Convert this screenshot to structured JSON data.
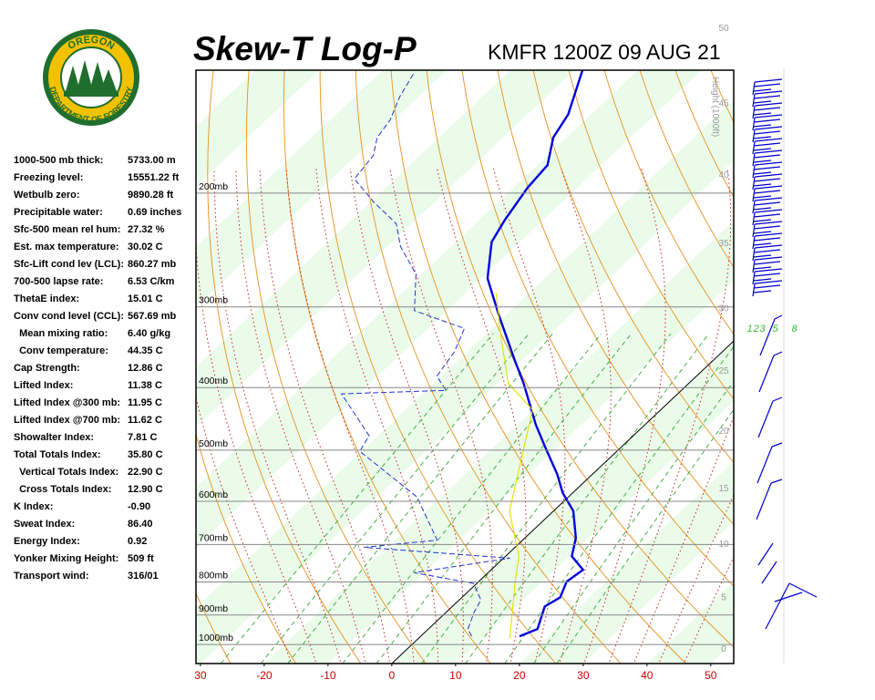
{
  "chart_data": {
    "type": "skewt",
    "title": "Skew-T Log-P",
    "subtitle": "KMFR 1200Z 09 AUG 21",
    "logo_top": "OREGON",
    "logo_bottom": "DEPARTMENT OF FORESTRY",
    "ylog": true,
    "xlim": [
      -30.7,
      53.6
    ],
    "ylim": [
      1070,
      129
    ],
    "xticks": [
      {
        "value": -30,
        "label": "30"
      },
      -20,
      -10,
      0,
      10,
      20,
      30,
      40,
      50
    ],
    "yticks": [
      {
        "value": 200,
        "label": "200mb"
      },
      {
        "value": 300,
        "label": "300mb"
      },
      {
        "value": 400,
        "label": "400mb"
      },
      {
        "value": 500,
        "label": "500mb"
      },
      {
        "value": 600,
        "label": "600mb"
      },
      {
        "value": 700,
        "label": "700mb"
      },
      {
        "value": 800,
        "label": "800mb"
      },
      {
        "value": 900,
        "label": "900mb"
      },
      {
        "value": 1000,
        "label": "1000mb"
      }
    ],
    "height_label": "Height (1000ft)",
    "height_ticks": [
      0,
      5,
      10,
      15,
      20,
      25,
      30,
      35,
      40,
      45,
      50
    ],
    "mixing_ratios": [
      1,
      2,
      3,
      5,
      8
    ],
    "series": [
      {
        "color": "#0000dd",
        "style": "solid",
        "pressure": [
          971,
          946,
          873,
          845,
          799,
          766,
          730,
          684,
          621,
          582,
          545,
          494,
          456,
          394,
          363,
          309,
          271,
          238,
          220,
          196,
          181,
          164,
          151,
          129
        ],
        "values": [
          15.5,
          17.1,
          14.5,
          15.4,
          13.8,
          14.4,
          10.4,
          8.0,
          3.1,
          -1.6,
          -5.5,
          -12.0,
          -17.2,
          -25.9,
          -31.1,
          -41.1,
          -49.0,
          -54.4,
          -56.0,
          -57.8,
          -58.4,
          -62.1,
          -63.6,
          -68.7
        ]
      },
      {
        "color": "#2233cc",
        "style": "dashed",
        "pressure": [
          971,
          946,
          892,
          853,
          804,
          774,
          735,
          707,
          689,
          621,
          591,
          502,
          475,
          409,
          404,
          384,
          352,
          324,
          304,
          267,
          242,
          223,
          206,
          190,
          175,
          164,
          154,
          142,
          130
        ],
        "values": [
          8.0,
          6.2,
          4.4,
          3.4,
          -0.5,
          -11.6,
          1.0,
          -23.7,
          -13.4,
          -20.4,
          -23.7,
          -40.3,
          -41.4,
          -52.7,
          -36.9,
          -40.7,
          -42.0,
          -44.3,
          -55.1,
          -60.9,
          -67.9,
          -72.4,
          -79.7,
          -86.4,
          -87.3,
          -89.7,
          -90.6,
          -92.9,
          -94.7
        ]
      },
      {
        "color": "#e0e000",
        "style": "solid",
        "pressure": [
          978,
          804,
          730,
          621,
          433,
          394,
          335,
          285
        ],
        "values": [
          14.3,
          6.0,
          2.1,
          -6.9,
          -20.1,
          -28.3,
          -37.0,
          -45.3
        ]
      }
    ],
    "indices": [
      [
        "1000-500 mb thick:",
        "5733.00 m"
      ],
      [
        "Freezing level:",
        "15551.22 ft"
      ],
      [
        "Wetbulb zero:",
        "9890.28 ft"
      ],
      [
        "Precipitable water:",
        "0.69 inches"
      ],
      [
        "Sfc-500 mean rel hum:",
        "27.32 %"
      ],
      [
        "Est. max temperature:",
        "30.02 C"
      ],
      [
        "Sfc-Lift cond lev (LCL):",
        "860.27 mb"
      ],
      [
        "700-500 lapse rate:",
        "6.53 C/km"
      ],
      [
        "ThetaE index:",
        "15.01 C"
      ],
      [
        "Conv cond level (CCL):",
        "567.69 mb"
      ],
      [
        "  Mean mixing ratio:",
        "6.40 g/kg"
      ],
      [
        "  Conv temperature:",
        "44.35 C"
      ],
      [
        "Cap Strength:",
        "12.86 C"
      ],
      [
        "Lifted Index:",
        "11.38 C"
      ],
      [
        "Lifted Index @300 mb:",
        "11.95 C"
      ],
      [
        "Lifted Index @700 mb:",
        "11.62 C"
      ],
      [
        "Showalter Index:",
        "7.81 C"
      ],
      [
        "Total Totals Index:",
        "35.80 C"
      ],
      [
        "  Vertical Totals Index:",
        "22.90 C"
      ],
      [
        "  Cross Totals Index:",
        "12.90 C"
      ],
      [
        "K Index:",
        "-0.90"
      ],
      [
        "Sweat Index:",
        "86.40"
      ],
      [
        "Energy Index:",
        "0.92"
      ],
      [
        "Yonker Mixing Height:",
        "509 ft"
      ],
      [
        "Transport wind:",
        "316/01"
      ]
    ]
  }
}
